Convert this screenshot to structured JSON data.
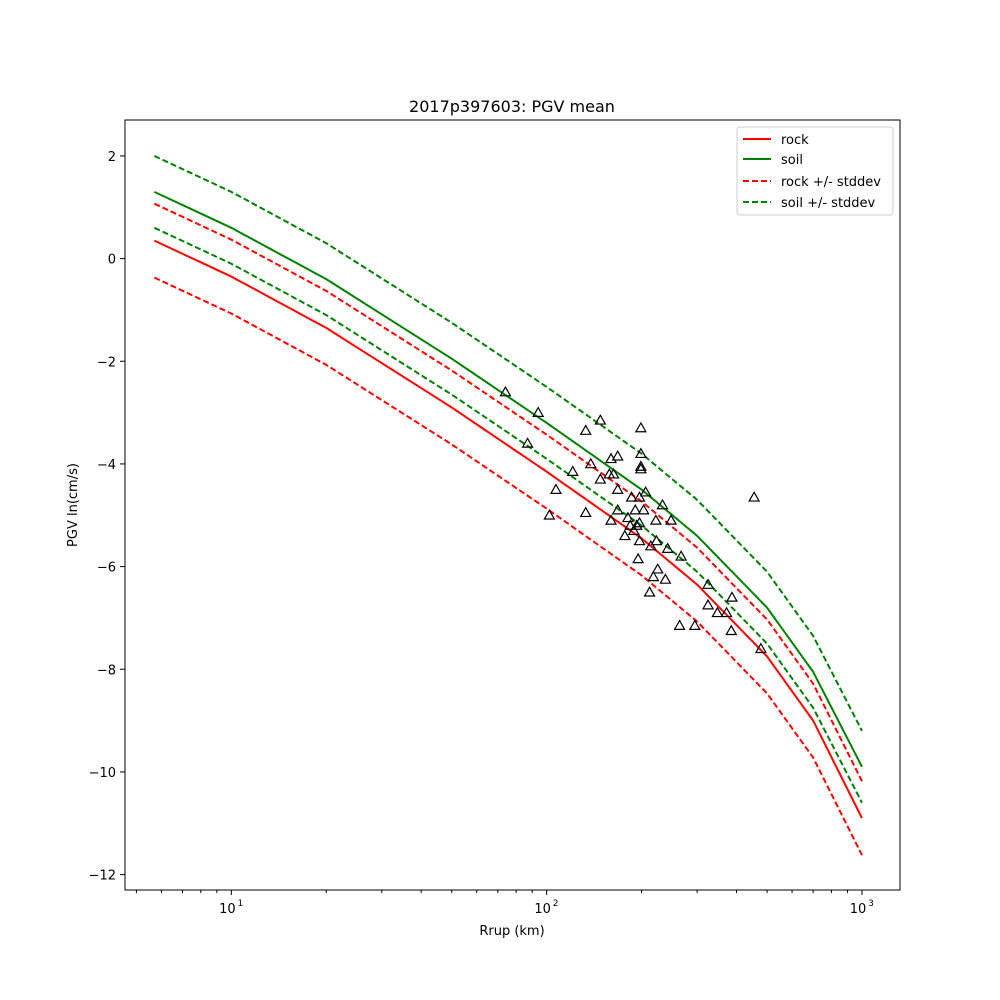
{
  "chart_data": {
    "type": "scatter",
    "title": "2017p397603: PGV mean",
    "xlabel": "Rrup (km)",
    "ylabel": "PGV ln(cm/s)",
    "xscale": "log",
    "xlim": [
      4.6,
      1320
    ],
    "ylim": [
      -12.3,
      2.7
    ],
    "xticks": [
      {
        "value": 10,
        "label": "10",
        "sup": "1"
      },
      {
        "value": 100,
        "label": "10",
        "sup": "2"
      },
      {
        "value": 1000,
        "label": "10",
        "sup": "3"
      }
    ],
    "yticks": [
      2,
      0,
      -2,
      -4,
      -6,
      -8,
      -10,
      -12
    ],
    "yticklabels": [
      "2",
      "0",
      "−2",
      "−4",
      "−6",
      "−8",
      "−10",
      "−12"
    ],
    "grid": false,
    "legend_position": "top-right",
    "colors": {
      "rock": "#ff0000",
      "soil": "#008000",
      "marker": "#000000"
    },
    "series": [
      {
        "name": "rock",
        "style": "solid",
        "color": "#ff0000",
        "x": [
          5.7,
          10,
          20,
          50,
          100,
          200,
          300,
          500,
          700,
          1000
        ],
        "y": [
          0.35,
          -0.35,
          -1.35,
          -2.9,
          -4.15,
          -5.45,
          -6.35,
          -7.75,
          -9.0,
          -10.9
        ]
      },
      {
        "name": "soil",
        "style": "solid",
        "color": "#008000",
        "x": [
          5.7,
          10,
          20,
          50,
          100,
          200,
          300,
          500,
          700,
          1000
        ],
        "y": [
          1.3,
          0.6,
          -0.4,
          -1.95,
          -3.2,
          -4.5,
          -5.4,
          -6.8,
          -8.05,
          -9.9
        ]
      },
      {
        "name": "rock +/- stddev",
        "style": "dashed",
        "color": "#ff0000",
        "x": [
          5.7,
          10,
          20,
          50,
          100,
          200,
          300,
          500,
          700,
          1000
        ],
        "y": [
          1.07,
          0.37,
          -0.63,
          -2.18,
          -3.43,
          -4.73,
          -5.63,
          -7.03,
          -8.28,
          -10.18
        ]
      },
      {
        "name": "rock +/- stddev",
        "style": "dashed",
        "color": "#ff0000",
        "legend": false,
        "x": [
          5.7,
          10,
          20,
          50,
          100,
          200,
          300,
          500,
          700,
          1000
        ],
        "y": [
          -0.37,
          -1.07,
          -2.07,
          -3.62,
          -4.87,
          -6.17,
          -7.07,
          -8.47,
          -9.72,
          -11.62
        ]
      },
      {
        "name": "soil +/- stddev",
        "style": "dashed",
        "color": "#008000",
        "x": [
          5.7,
          10,
          20,
          50,
          100,
          200,
          300,
          500,
          700,
          1000
        ],
        "y": [
          2.0,
          1.3,
          0.3,
          -1.25,
          -2.5,
          -3.8,
          -4.7,
          -6.1,
          -7.35,
          -9.2
        ]
      },
      {
        "name": "soil +/- stddev",
        "style": "dashed",
        "color": "#008000",
        "legend": false,
        "x": [
          5.7,
          10,
          20,
          50,
          100,
          200,
          300,
          500,
          700,
          1000
        ],
        "y": [
          0.6,
          -0.1,
          -1.1,
          -2.65,
          -3.9,
          -5.2,
          -6.1,
          -7.5,
          -8.75,
          -10.6
        ]
      }
    ],
    "observations": {
      "marker": "triangle-open",
      "color": "#000000",
      "points": [
        [
          74,
          -2.6
        ],
        [
          94,
          -3.0
        ],
        [
          87,
          -3.6
        ],
        [
          102,
          -5.0
        ],
        [
          107,
          -4.5
        ],
        [
          121,
          -4.15
        ],
        [
          133,
          -3.35
        ],
        [
          133,
          -4.95
        ],
        [
          138,
          -4.0
        ],
        [
          148,
          -3.15
        ],
        [
          148,
          -4.3
        ],
        [
          158,
          -4.2
        ],
        [
          160,
          -3.9
        ],
        [
          160,
          -5.1
        ],
        [
          163,
          -4.2
        ],
        [
          168,
          -3.85
        ],
        [
          168,
          -4.5
        ],
        [
          168,
          -4.9
        ],
        [
          177,
          -5.4
        ],
        [
          181,
          -5.05
        ],
        [
          184,
          -5.2
        ],
        [
          186,
          -4.65
        ],
        [
          189,
          -5.3
        ],
        [
          191,
          -4.9
        ],
        [
          193,
          -5.2
        ],
        [
          195,
          -5.85
        ],
        [
          197,
          -5.5
        ],
        [
          197,
          -5.15
        ],
        [
          197,
          -4.65
        ],
        [
          199,
          -3.3
        ],
        [
          199,
          -4.05
        ],
        [
          199,
          -4.1
        ],
        [
          199,
          -3.8
        ],
        [
          203,
          -4.9
        ],
        [
          206,
          -4.55
        ],
        [
          212,
          -6.5
        ],
        [
          214,
          -5.6
        ],
        [
          218,
          -6.2
        ],
        [
          222,
          -5.1
        ],
        [
          223,
          -5.5
        ],
        [
          225,
          -6.05
        ],
        [
          233,
          -4.8
        ],
        [
          238,
          -6.25
        ],
        [
          242,
          -5.65
        ],
        [
          248,
          -5.1
        ],
        [
          264,
          -7.15
        ],
        [
          267,
          -5.8
        ],
        [
          295,
          -7.15
        ],
        [
          325,
          -6.35
        ],
        [
          325,
          -6.75
        ],
        [
          348,
          -6.9
        ],
        [
          372,
          -6.9
        ],
        [
          385,
          -7.25
        ],
        [
          387,
          -6.6
        ],
        [
          455,
          -4.65
        ],
        [
          478,
          -7.6
        ]
      ]
    }
  }
}
